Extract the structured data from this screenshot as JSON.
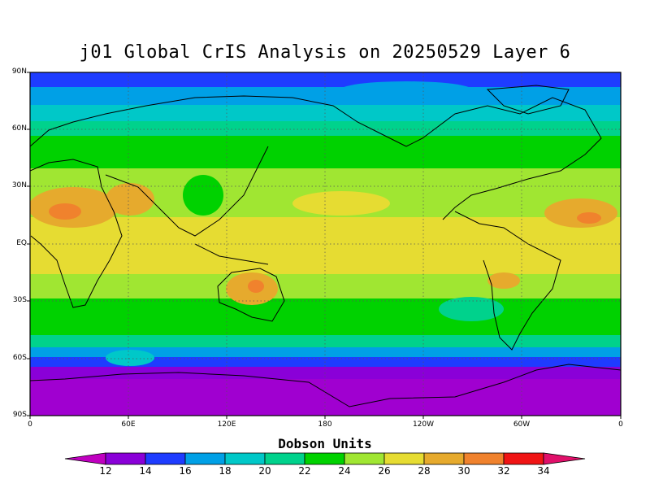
{
  "title": "j01 Global CrIS Analysis on 20250529 Layer 6",
  "units_label": "Dobson Units",
  "lat_labels": [
    "90N",
    "60N",
    "30N",
    "EQ",
    "30S",
    "60S",
    "90S"
  ],
  "lon_labels": [
    "0",
    "60E",
    "120E",
    "180",
    "120W",
    "60W",
    "0"
  ],
  "colorbar": {
    "ticks": [
      "12",
      "14",
      "16",
      "18",
      "20",
      "22",
      "24",
      "26",
      "28",
      "30",
      "32",
      "34"
    ],
    "below_color": "#c000c0",
    "above_color": "#e0106a",
    "colors": [
      "#8a00d8",
      "#1e3cff",
      "#00a0e6",
      "#00c8c8",
      "#00d28c",
      "#00d200",
      "#a0e632",
      "#e6dc32",
      "#e6aa2d",
      "#f0822d",
      "#f01414"
    ]
  },
  "chart_data": {
    "type": "heatmap",
    "title": "j01 Global CrIS Analysis on 20250529 Layer 6",
    "colorbar_label": "Dobson Units",
    "x_range_deg": [
      0,
      360
    ],
    "y_range_deg": [
      -90,
      90
    ],
    "x_ticks": [
      "0",
      "60E",
      "120E",
      "180",
      "120W",
      "60W",
      "0"
    ],
    "y_ticks": [
      "90N",
      "60N",
      "30N",
      "EQ",
      "30S",
      "60S",
      "90S"
    ],
    "grid": true,
    "levels": [
      12,
      14,
      16,
      18,
      20,
      22,
      24,
      26,
      28,
      30,
      32,
      34
    ]
  }
}
